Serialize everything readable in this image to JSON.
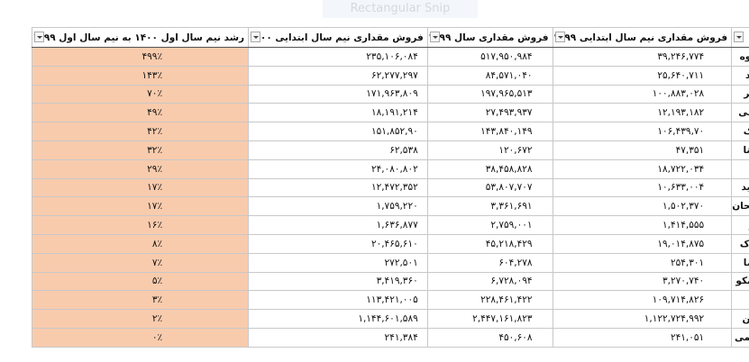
{
  "overlay": {
    "label": "Rectangular Snip"
  },
  "table": {
    "headers": [
      "نماد",
      "فروش مقداری نیم سال ابتدایی ۱۳۹۹",
      "فروش مقداری سال ۱۳۹۹",
      "فروش مقداری نیم سال ابتدایی ۱۴۰۰",
      "رشد نیم سال اول ۱۴۰۰ به نیم سال اول ۱۳۹۹"
    ],
    "rows": [
      [
        "داسوه",
        "۳۹,۲۴۶,۷۷۴",
        "۵۱۷,۹۵۰,۹۸۴",
        "۲۳۵,۱۰۶,۰۸۴",
        "۴۹۹٪"
      ],
      [
        "دتماد",
        "۲۵,۶۴۰,۷۱۱",
        "۸۴,۵۷۱,۰۴۰",
        "۶۲,۲۷۷,۲۹۷",
        "۱۴۳٪"
      ],
      [
        "دجابر",
        "۱۰۰,۸۸۳,۰۲۸",
        "۱۹۷,۹۶۵,۵۱۳",
        "۱۷۱,۹۶۳,۸۰۹",
        "۷۰٪"
      ],
      [
        "دکیمی",
        "۱۲,۱۹۳,۱۸۲",
        "۲۷,۴۹۳,۹۳۷",
        "۱۸,۱۹۱,۲۱۴",
        "۴۹٪"
      ],
      [
        "دبالک",
        "۱۰۶,۴۳۹,۷۰",
        "۱۴۳,۸۴۰,۱۴۹",
        "۱۵۱,۸۵۲,۹۰",
        "۴۲٪"
      ],
      [
        "دسینا",
        "۴۷,۳۵۱",
        "۱۲۰,۶۷۲",
        "۶۲,۵۳۸",
        "۳۲٪"
      ],
      [
        "دفرا",
        "۱۸,۷۲۲,۰۳۴",
        "۳۸,۴۵۸,۸۲۸",
        "۲۴,۰۸۰,۸۰۲",
        "۲۹٪"
      ],
      [
        "دتولید",
        "۱۰,۶۳۳,۰۰۴",
        "۵۳,۸۰۷,۷۰۷",
        "۱۲,۴۷۲,۳۵۲",
        "۱۷٪"
      ],
      [
        "دسبحان",
        "۱,۵۰۲,۳۷۰",
        "۳,۳۶۱,۶۹۱",
        "۱,۷۵۹,۲۲۰",
        "۱۷٪"
      ],
      [
        "دارو",
        "۱,۴۱۴,۵۵۵",
        "۲,۷۵۹,۰۰۱",
        "۱,۶۳۶,۸۷۷",
        "۱۶٪"
      ],
      [
        "درازک",
        "۱۹,۰۱۴,۸۷۵",
        "۴۵,۲۱۸,۴۲۹",
        "۲۰,۴۶۵,۶۱۰",
        "۸٪"
      ],
      [
        "دلقما",
        "۲۵۴,۳۰۱",
        "۶۰۴,۲۷۸",
        "۲۷۲,۵۰۱",
        "۷٪"
      ],
      [
        "دسانکو",
        "۳,۲۷۰,۷۴۰",
        "۶,۷۲۸,۰۹۴",
        "۳,۴۱۹,۳۶۰",
        "۵٪"
      ],
      [
        "داوه",
        "۱۰۹,۷۱۴,۸۲۶",
        "۲۲۸,۴۶۱,۴۲۲",
        "۱۱۳,۴۲۱,۰۰۵",
        "۳٪"
      ],
      [
        "دامین",
        "۱,۱۲۲,۷۲۴,۹۹۲",
        "۲,۴۴۷,۱۶۱,۸۲۳",
        "۱,۱۴۴,۶۰۱,۵۸۹",
        "۲٪"
      ],
      [
        "دشیمی",
        "۲۴۱,۰۵۱",
        "۴۵۰,۶۰۸",
        "۲۴۱,۳۸۴",
        "۰٪"
      ]
    ]
  }
}
